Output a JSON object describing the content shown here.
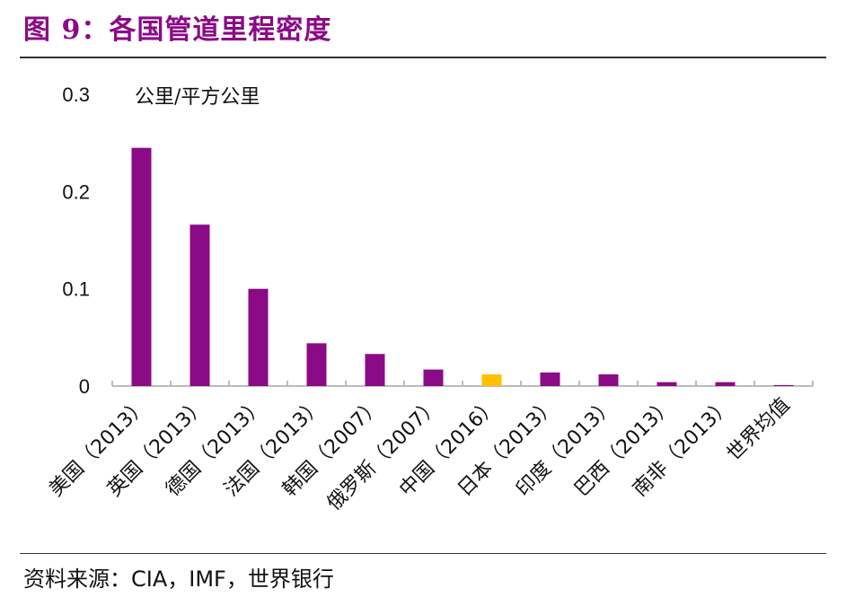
{
  "title": "图 9：各国管道里程密度",
  "source": "资料来源：CIA，IMF，世界银行",
  "chart_data": {
    "type": "bar",
    "title": "",
    "ylabel": "公里/平方公里",
    "ylim": [
      0,
      0.3
    ],
    "yticks": [
      "0",
      "0.1",
      "0.2",
      "0.3"
    ],
    "ytick_values": [
      0,
      0.1,
      0.2,
      0.3
    ],
    "grid": false,
    "categories": [
      "美国（2013）",
      "英国（2013）",
      "德国（2013）",
      "法国（2013）",
      "韩国（2007）",
      "俄罗斯（2007）",
      "中国（2016）",
      "日本（2013）",
      "印度（2013）",
      "巴西（2013）",
      "南非（2013）",
      "世界均值"
    ],
    "values": [
      0.245,
      0.166,
      0.1,
      0.044,
      0.033,
      0.017,
      0.012,
      0.014,
      0.012,
      0.004,
      0.004,
      0.001
    ],
    "colors": [
      "#8B0A86",
      "#8B0A86",
      "#8B0A86",
      "#8B0A86",
      "#8B0A86",
      "#8B0A86",
      "#FFC000",
      "#8B0A86",
      "#8B0A86",
      "#8B0A86",
      "#8B0A86",
      "#8B0A86"
    ]
  }
}
